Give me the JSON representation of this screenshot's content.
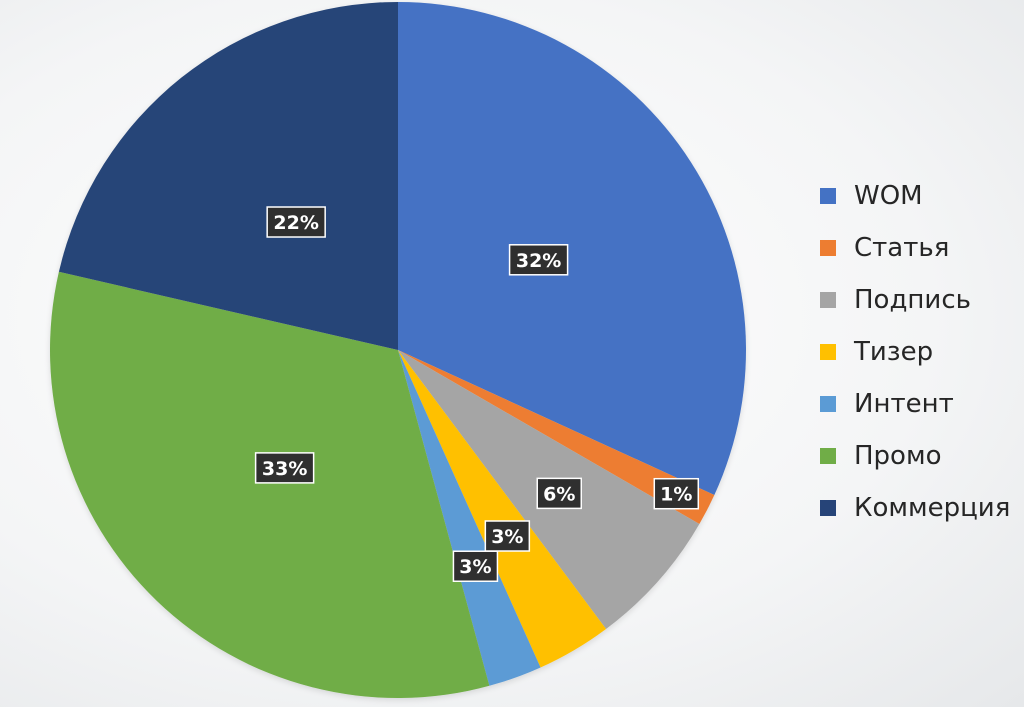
{
  "chart_data": {
    "type": "pie",
    "title": "",
    "legend_position": "right",
    "slices": [
      {
        "name": "WOM",
        "value": 32,
        "label": "32%",
        "color": "#4472c4"
      },
      {
        "name": "Статья",
        "value": 1.5,
        "label": "1%",
        "color": "#ed7d31"
      },
      {
        "name": "Подпись",
        "value": 6.5,
        "label": "6%",
        "color": "#a5a5a5"
      },
      {
        "name": "Тизер",
        "value": 3.5,
        "label": "3%",
        "color": "#ffc000"
      },
      {
        "name": "Интент",
        "value": 2.5,
        "label": "3%",
        "color": "#5b9bd5"
      },
      {
        "name": "Промо",
        "value": 33,
        "label": "33%",
        "color": "#70ad47"
      },
      {
        "name": "Коммерция",
        "value": 21.5,
        "label": "22%",
        "color": "#264478"
      }
    ]
  }
}
